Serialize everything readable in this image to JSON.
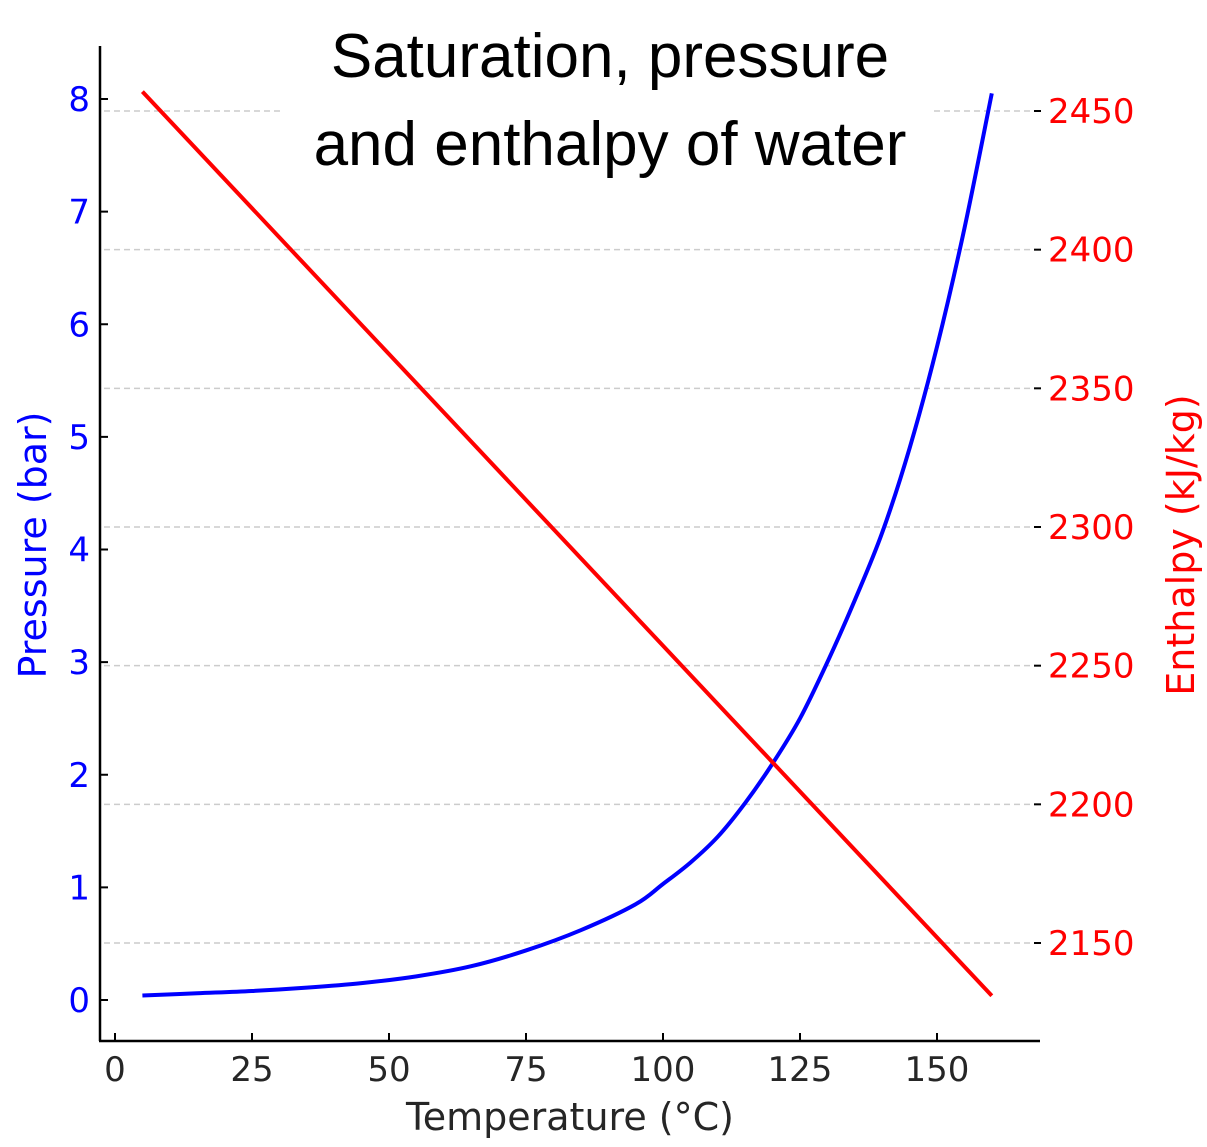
{
  "chart_data": {
    "type": "line",
    "title_lines": [
      "Saturation, pressure",
      "and enthalpy of water"
    ],
    "xlabel": "Temperature (°C)",
    "ylabel_left": "Pressure (bar)",
    "ylabel_right": "Enthalpy (kJ/kg)",
    "xlim": [
      -2.5,
      168.5
    ],
    "ylim_left": [
      -0.36,
      8.45
    ],
    "ylim_right": [
      2116,
      2455
    ],
    "xticks": [
      0,
      25,
      50,
      75,
      100,
      125,
      150
    ],
    "yticks_left": [
      0,
      1,
      2,
      3,
      4,
      5,
      6,
      7,
      8
    ],
    "yticks_right": [
      2150,
      2200,
      2250,
      2300,
      2350,
      2400,
      2450
    ],
    "grid": "horizontal-dashed-right-axis",
    "series": [
      {
        "name": "Pressure",
        "axis": "left",
        "color": "#0000ff",
        "x": [
          5,
          15,
          25,
          35,
          45,
          55,
          65,
          75,
          85,
          95,
          100,
          105,
          110,
          115,
          120,
          125,
          130,
          135,
          140,
          145,
          150,
          155,
          160
        ],
        "y": [
          0.04,
          0.06,
          0.08,
          0.11,
          0.15,
          0.21,
          0.3,
          0.44,
          0.62,
          0.85,
          1.03,
          1.22,
          1.45,
          1.75,
          2.1,
          2.5,
          3.0,
          3.55,
          4.15,
          4.9,
          5.8,
          6.85,
          8.05
        ]
      },
      {
        "name": "Enthalpy",
        "axis": "right",
        "color": "#ff0000",
        "x": [
          5,
          160
        ],
        "y": [
          2457,
          2131
        ]
      }
    ]
  }
}
